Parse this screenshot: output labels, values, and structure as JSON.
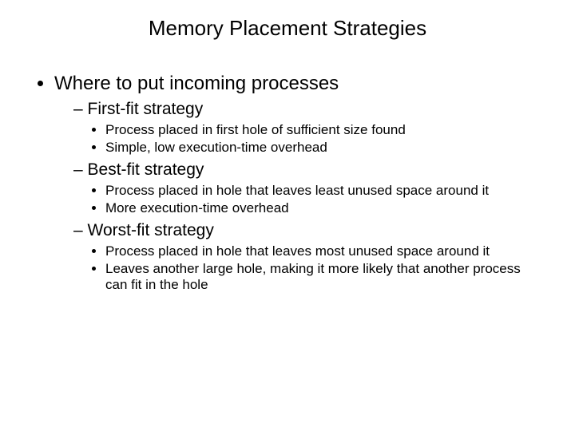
{
  "title": "Memory Placement Strategies",
  "bullet": {
    "text": "Where to put incoming processes",
    "strategies": [
      {
        "name": "First-fit strategy",
        "points": [
          "Process placed in first hole of sufficient size found",
          "Simple, low execution-time overhead"
        ]
      },
      {
        "name": "Best-fit strategy",
        "points": [
          "Process placed in hole that leaves least unused space around it",
          "More execution-time overhead"
        ]
      },
      {
        "name": "Worst-fit strategy",
        "points": [
          "Process placed in hole that leaves most unused space around it",
          "Leaves another large hole, making it more likely that another process can fit in the hole"
        ]
      }
    ]
  },
  "colors": {
    "background": "#ffffff",
    "text": "#000000"
  },
  "typography": {
    "font_family": "Arial",
    "title_fontsize": 26,
    "level1_fontsize": 24,
    "level2_fontsize": 21,
    "level3_fontsize": 17
  }
}
